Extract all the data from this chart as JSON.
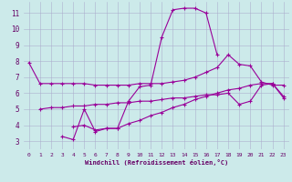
{
  "background_color": "#cceaea",
  "plot_bg_color": "#cceaea",
  "line_color": "#990099",
  "grid_color": "#aaaacc",
  "xlabel": "Windchill (Refroidissement éolien,°C)",
  "xlabel_color": "#660066",
  "xlim": [
    -0.5,
    23.5
  ],
  "ylim": [
    2.5,
    11.7
  ],
  "yticks": [
    3,
    4,
    5,
    6,
    7,
    8,
    9,
    10,
    11
  ],
  "xticks": [
    0,
    1,
    2,
    3,
    4,
    5,
    6,
    7,
    8,
    9,
    10,
    11,
    12,
    13,
    14,
    15,
    16,
    17,
    18,
    19,
    20,
    21,
    22,
    23
  ],
  "line1_x": [
    0,
    1,
    2,
    3,
    4,
    5,
    6,
    7,
    8,
    9,
    10,
    11,
    12,
    13,
    14,
    15,
    16,
    17,
    18,
    19,
    20,
    21,
    22,
    23
  ],
  "line1_y": [
    7.9,
    6.6,
    6.6,
    6.6,
    6.6,
    6.6,
    6.5,
    6.5,
    6.5,
    6.5,
    6.6,
    6.6,
    6.6,
    6.7,
    6.8,
    7.0,
    7.3,
    7.6,
    8.4,
    7.8,
    7.7,
    6.7,
    6.5,
    6.5
  ],
  "line2_x": [
    3,
    4,
    5,
    6,
    7,
    8,
    9,
    10,
    11,
    12,
    13,
    14,
    15,
    16,
    17
  ],
  "line2_y": [
    3.3,
    3.1,
    5.0,
    3.6,
    3.8,
    3.8,
    5.5,
    6.4,
    6.5,
    9.5,
    11.2,
    11.3,
    11.3,
    11.0,
    8.4
  ],
  "line3_x": [
    1,
    2,
    3,
    4,
    5,
    6,
    7,
    8,
    9,
    10,
    11,
    12,
    13,
    14,
    15,
    16,
    17,
    18,
    19,
    20,
    21,
    22,
    23
  ],
  "line3_y": [
    5.0,
    5.1,
    5.1,
    5.2,
    5.2,
    5.3,
    5.3,
    5.4,
    5.4,
    5.5,
    5.5,
    5.6,
    5.7,
    5.7,
    5.8,
    5.9,
    5.9,
    6.0,
    5.3,
    5.5,
    6.5,
    6.6,
    5.8
  ],
  "line4_x": [
    4,
    5,
    6,
    7,
    8,
    9,
    10,
    11,
    12,
    13,
    14,
    15,
    16,
    17,
    18,
    19,
    20,
    21,
    22,
    23
  ],
  "line4_y": [
    3.9,
    4.0,
    3.7,
    3.8,
    3.8,
    4.1,
    4.3,
    4.6,
    4.8,
    5.1,
    5.3,
    5.6,
    5.8,
    6.0,
    6.2,
    6.3,
    6.5,
    6.6,
    6.6,
    5.7
  ]
}
